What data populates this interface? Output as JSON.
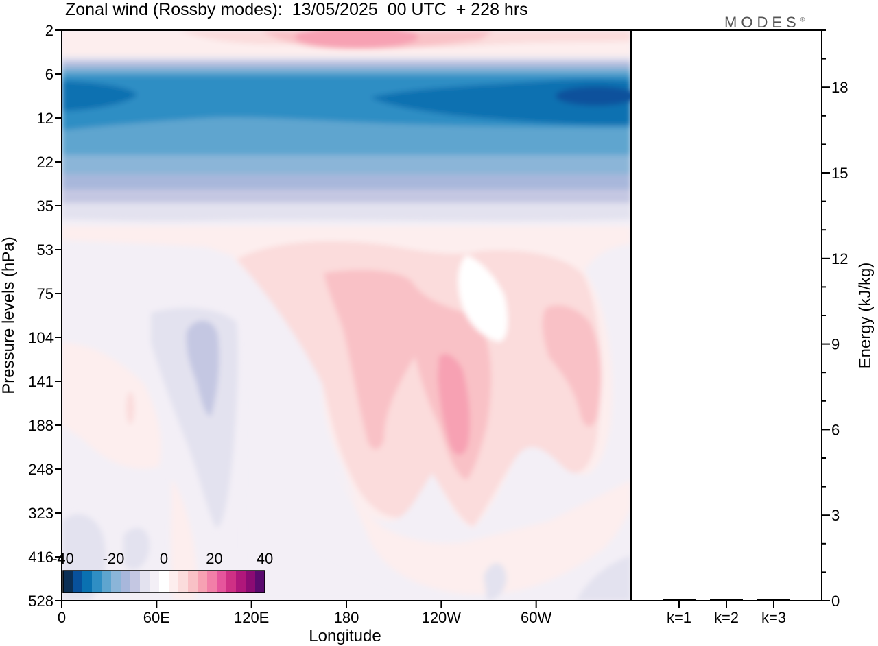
{
  "title": "Zonal wind (Rossby modes):  13/05/2025  00 UTC  + 228 hrs",
  "brand": "MODES",
  "brand_mark": "®",
  "chart_data": [
    {
      "type": "heatmap",
      "title": "Zonal wind (Rossby modes):  13/05/2025  00 UTC  + 228 hrs",
      "xlabel": "Longitude",
      "ylabel": "Pressure levels (hPa)",
      "x_ticks": [
        "0",
        "60E",
        "120E",
        "180",
        "120W",
        "60W"
      ],
      "x_range": [
        0,
        360
      ],
      "y_ticks": [
        "2",
        "6",
        "12",
        "22",
        "35",
        "53",
        "75",
        "104",
        "141",
        "188",
        "248",
        "323",
        "416",
        "528"
      ],
      "colorbar": {
        "labels": [
          "-40",
          "-20",
          "0",
          "20",
          "40"
        ],
        "min": -40,
        "max": 40,
        "step": 5,
        "colors": [
          "#0b2f55",
          "#08519c",
          "#0a71b1",
          "#2f8ec4",
          "#5ea5cf",
          "#8bb5d8",
          "#a8b7db",
          "#c4c7e2",
          "#e3e2ef",
          "#f3eff6",
          "#ffffff",
          "#fdeeee",
          "#fbdcdc",
          "#f9c1c6",
          "#f7a1b3",
          "#f27fa8",
          "#e6559c",
          "#cf3085",
          "#b0177b",
          "#8b0b73",
          "#5a0a6e"
        ]
      },
      "features": [
        {
          "name": "upper stratospheric westerlies",
          "lon": [
            90,
            240
          ],
          "level": 2,
          "value": 18
        },
        {
          "name": "easterly jet core",
          "lon": [
            0,
            360
          ],
          "level": 9,
          "value": -30
        },
        {
          "name": "easterly jet maximum",
          "lon": [
            315,
            350
          ],
          "level": 9,
          "value": -35
        },
        {
          "name": "westerly maximum",
          "lon": [
            240,
            250
          ],
          "level": 141,
          "value": 18
        },
        {
          "name": "westerly region",
          "lon": [
            165,
            215
          ],
          "level": 104,
          "value": 12
        },
        {
          "name": "westerly region",
          "lon": [
            305,
            335
          ],
          "level": 120,
          "value": 12
        },
        {
          "name": "easterly region",
          "lon": [
            75,
            100
          ],
          "level": 120,
          "value": -8
        }
      ]
    },
    {
      "type": "bar",
      "ylabel": "Energy (kJ/kg)",
      "categories": [
        "k=1",
        "k=2",
        "k=3"
      ],
      "values": [
        0.03,
        0.02,
        0.02
      ],
      "y_ticks": [
        "0",
        "3",
        "6",
        "9",
        "12",
        "15",
        "18"
      ],
      "ylim": [
        0,
        20
      ]
    }
  ]
}
